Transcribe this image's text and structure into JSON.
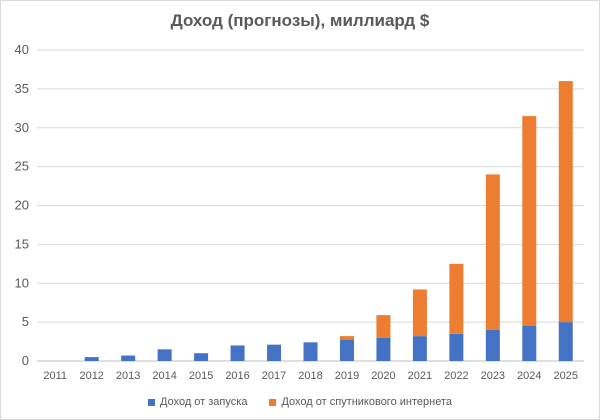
{
  "chart_data": {
    "type": "bar",
    "stacked": true,
    "title": "Доход (прогнозы), миллиард $",
    "xlabel": "",
    "ylabel": "",
    "ylim": [
      0,
      40
    ],
    "yticks": [
      0,
      5,
      10,
      15,
      20,
      25,
      30,
      35,
      40
    ],
    "grid": true,
    "legend_position": "bottom",
    "categories": [
      "2011",
      "2012",
      "2013",
      "2014",
      "2015",
      "2016",
      "2017",
      "2018",
      "2019",
      "2020",
      "2021",
      "2022",
      "2023",
      "2024",
      "2025"
    ],
    "series": [
      {
        "name": "Доход от запуска",
        "color": "#4472c4",
        "values": [
          0,
          0.5,
          0.7,
          1.5,
          1.0,
          2.0,
          2.1,
          2.4,
          2.7,
          3.0,
          3.2,
          3.5,
          4.0,
          4.5,
          5.0
        ]
      },
      {
        "name": "Доход от спутникового интернета",
        "color": "#ed7d31",
        "values": [
          0,
          0,
          0,
          0,
          0,
          0,
          0,
          0,
          0.5,
          2.9,
          6.0,
          9.0,
          20.0,
          27.0,
          31.0
        ]
      }
    ]
  }
}
